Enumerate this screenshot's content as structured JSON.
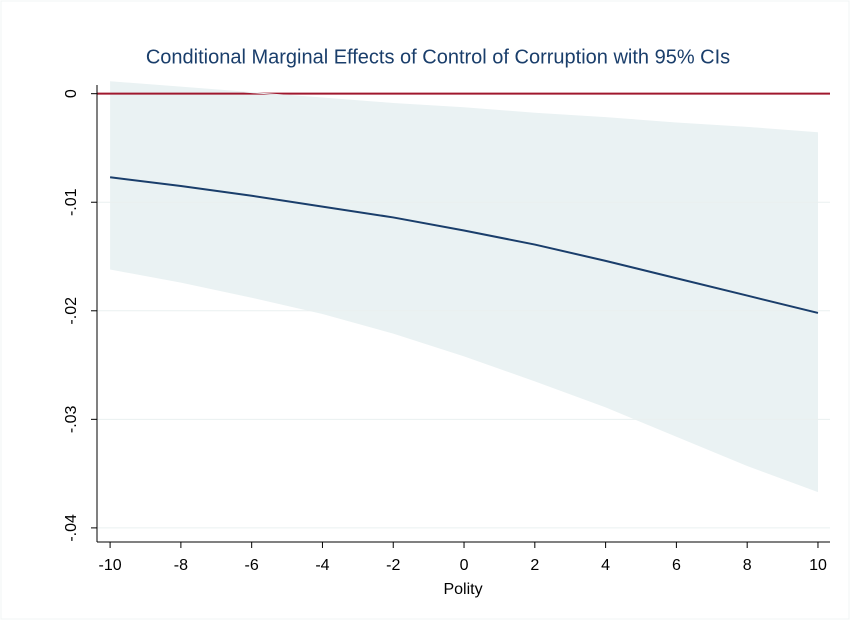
{
  "chart_data": {
    "type": "line",
    "title": "Conditional Marginal Effects of Control of Corruption with 95% CIs",
    "xlabel": "Polity",
    "x": [
      -10,
      -8,
      -6,
      -4,
      -2,
      0,
      2,
      4,
      6,
      8,
      10
    ],
    "series": [
      {
        "color": "#1a3e6b",
        "values": [
          -0.0077,
          -0.0085,
          -0.0094,
          -0.0104,
          -0.0114,
          -0.0126,
          -0.0139,
          -0.0154,
          -0.017,
          -0.0186,
          -0.0202
        ],
        "ci_upper": [
          0.0011,
          0.0006,
          0.0001,
          -0.0004,
          -0.0009,
          -0.0013,
          -0.0018,
          -0.0022,
          -0.0027,
          -0.0031,
          -0.0036
        ],
        "ci_lower": [
          -0.0162,
          -0.0174,
          -0.0188,
          -0.0203,
          -0.0221,
          -0.0242,
          -0.0265,
          -0.0289,
          -0.0316,
          -0.0343,
          -0.0367
        ],
        "ci_color": "#eaf2f3"
      }
    ],
    "reference_line": {
      "value": 0,
      "color": "#a0182e"
    },
    "xlim": [
      -10.37,
      10.34
    ],
    "xticks": [
      -10,
      -8,
      -6,
      -4,
      -2,
      0,
      2,
      4,
      6,
      8,
      10
    ],
    "ylim": [
      -0.0413,
      0.0008
    ],
    "yticks": [
      0,
      {
        "value": -0.01,
        "label": "-.01"
      },
      {
        "value": -0.02,
        "label": "-.02"
      },
      {
        "value": -0.03,
        "label": "-.03"
      },
      {
        "value": -0.04,
        "label": "-.04"
      }
    ],
    "grid": true
  }
}
